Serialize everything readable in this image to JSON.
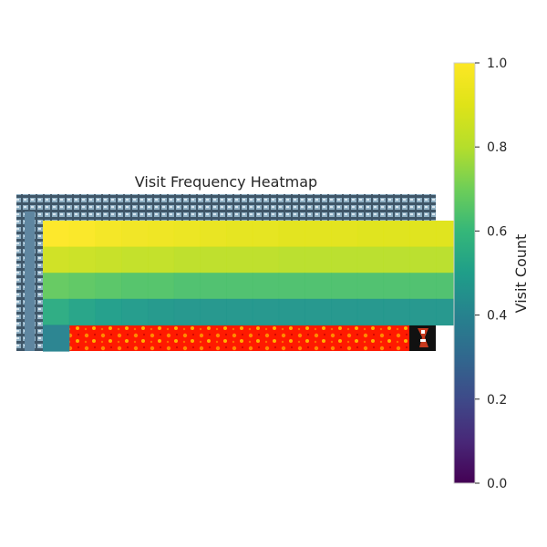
{
  "chart_data": {
    "type": "heatmap",
    "title": "Visit Frequency Heatmap",
    "colormap": "viridis",
    "grid": false,
    "colorbar": {
      "label": "Visit Count",
      "range": [
        0,
        1
      ],
      "ticks": [
        "0.0",
        "0.2",
        "0.4",
        "0.6",
        "0.8",
        "1.0"
      ],
      "placement": "right"
    },
    "rows": 5,
    "cols": 16,
    "values": [
      [
        1.0,
        0.99,
        0.97,
        0.96,
        0.95,
        0.94,
        0.93,
        0.92,
        0.92,
        0.91,
        0.91,
        0.91,
        0.9,
        0.9,
        0.9,
        0.9
      ],
      [
        0.86,
        0.85,
        0.84,
        0.83,
        0.83,
        0.82,
        0.82,
        0.82,
        0.82,
        0.81,
        0.81,
        0.81,
        0.81,
        0.81,
        0.81,
        0.81
      ],
      [
        0.68,
        0.67,
        0.66,
        0.65,
        0.65,
        0.64,
        0.64,
        0.64,
        0.64,
        0.64,
        0.64,
        0.64,
        0.64,
        0.64,
        0.64,
        0.64
      ],
      [
        0.55,
        0.52,
        0.5,
        0.49,
        0.48,
        0.47,
        0.47,
        0.47,
        0.47,
        0.47,
        0.47,
        0.47,
        0.47,
        0.47,
        0.47,
        0.47
      ],
      [
        0.4,
        null,
        null,
        null,
        null,
        null,
        null,
        null,
        null,
        null,
        null,
        null,
        null,
        null,
        null,
        null
      ]
    ],
    "background_tiles": {
      "wall_tiles": "top row and left column",
      "lava_tiles": "bottom row",
      "goal_tile": "bottom-right corner"
    }
  }
}
